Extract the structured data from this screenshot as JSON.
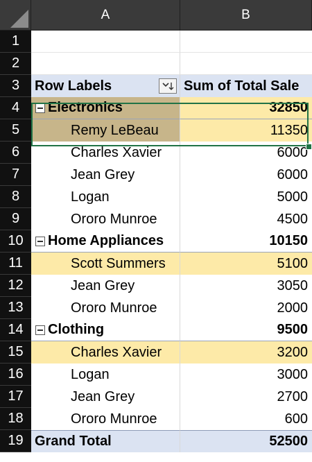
{
  "columns": [
    "A",
    "B"
  ],
  "row_numbers": [
    "1",
    "2",
    "3",
    "4",
    "5",
    "6",
    "7",
    "8",
    "9",
    "10",
    "11",
    "12",
    "13",
    "14",
    "15",
    "16",
    "17",
    "18",
    "19"
  ],
  "pivot": {
    "header": {
      "row_labels": "Row Labels",
      "value_label": "Sum of Total Sale",
      "filter_icon": "sort-filter-icon"
    },
    "rows": [
      {
        "type": "category",
        "label": "Electronics",
        "value": "32850",
        "state": "selected-category",
        "toggle": "collapse-minus-icon"
      },
      {
        "type": "item",
        "label": "Remy LeBeau",
        "value": "11350",
        "state": "active"
      },
      {
        "type": "item",
        "label": "Charles Xavier",
        "value": "6000"
      },
      {
        "type": "item",
        "label": "Jean Grey",
        "value": "6000"
      },
      {
        "type": "item",
        "label": "Logan",
        "value": "5000"
      },
      {
        "type": "item",
        "label": "Ororo Munroe",
        "value": "4500"
      },
      {
        "type": "category",
        "label": "Home Appliances",
        "value": "10150",
        "toggle": "collapse-minus-icon"
      },
      {
        "type": "item",
        "label": "Scott Summers",
        "value": "5100",
        "state": "highlight"
      },
      {
        "type": "item",
        "label": "Jean Grey",
        "value": "3050"
      },
      {
        "type": "item",
        "label": "Ororo Munroe",
        "value": "2000"
      },
      {
        "type": "category",
        "label": "Clothing",
        "value": "9500",
        "toggle": "collapse-minus-icon"
      },
      {
        "type": "item",
        "label": "Charles Xavier",
        "value": "3200",
        "state": "highlight"
      },
      {
        "type": "item",
        "label": "Logan",
        "value": "3000"
      },
      {
        "type": "item",
        "label": "Jean Grey",
        "value": "2700"
      },
      {
        "type": "item",
        "label": "Ororo Munroe",
        "value": "600"
      }
    ],
    "grand_total": {
      "label": "Grand Total",
      "value": "52500"
    }
  },
  "colors": {
    "header_fill": "#dbe3f2",
    "highlight_fill": "#fdeaa8",
    "selected_fill": "#c7b58a",
    "selection_border": "#217346"
  }
}
